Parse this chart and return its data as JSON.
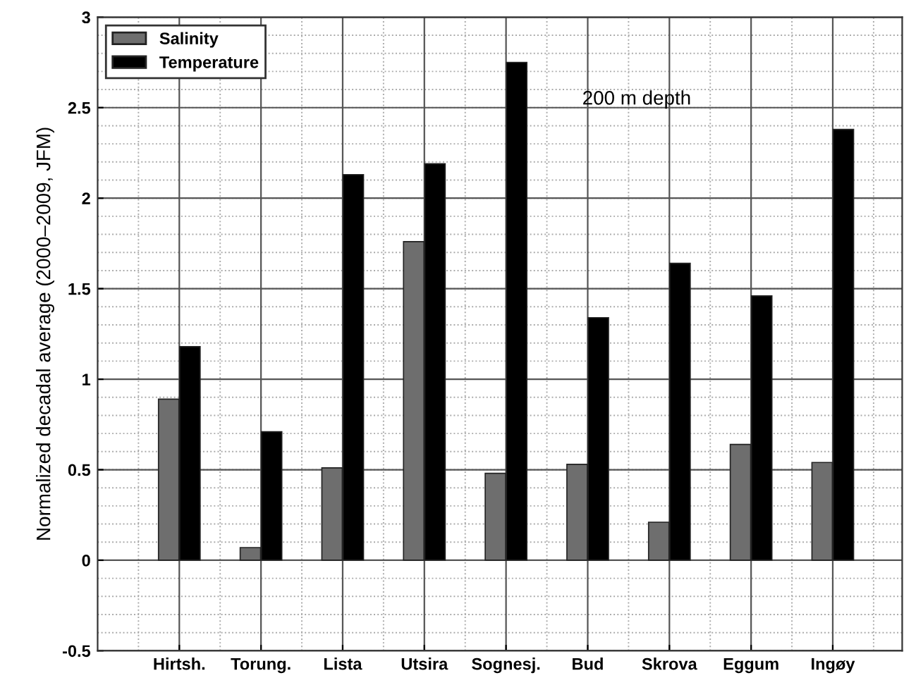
{
  "chart_data": {
    "type": "bar",
    "ylabel": "Normalized decadal average (2000–2009, JFM)",
    "categories": [
      "Hirtsh.",
      "Torung.",
      "Lista",
      "Utsira",
      "Sognesj.",
      "Bud",
      "Skrova",
      "Eggum",
      "Ingøy"
    ],
    "series": [
      {
        "name": "Salinity",
        "color": "#6e6e6e",
        "values": [
          0.89,
          0.07,
          0.51,
          1.76,
          0.48,
          0.53,
          0.21,
          0.64,
          0.54
        ]
      },
      {
        "name": "Temperature",
        "color": "#000000",
        "values": [
          1.18,
          0.71,
          2.13,
          2.19,
          2.75,
          1.34,
          1.64,
          1.46,
          2.38
        ]
      }
    ],
    "ylim": [
      -0.5,
      3
    ],
    "yticks": [
      -0.5,
      0,
      0.5,
      1,
      1.5,
      2,
      2.5,
      3
    ],
    "annotations": [
      "200 m depth"
    ],
    "grid": true,
    "legend": "top left"
  }
}
